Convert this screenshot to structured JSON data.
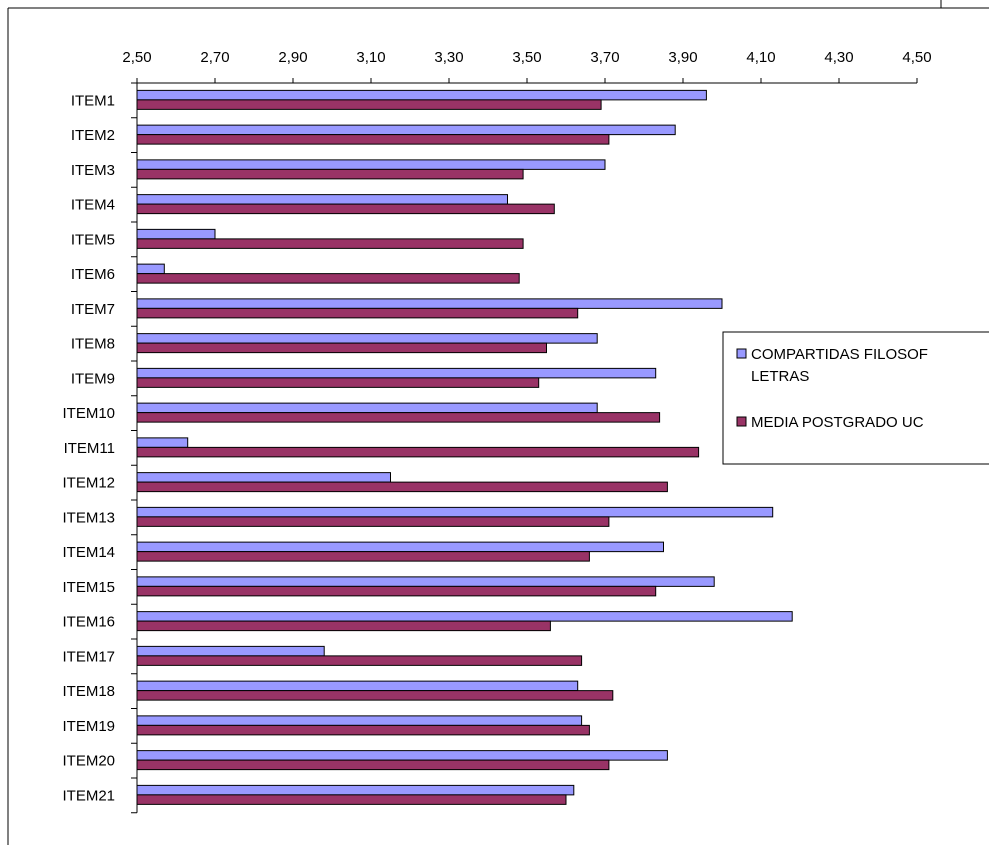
{
  "chart_data": {
    "type": "bar",
    "orientation": "horizontal",
    "categories": [
      "ITEM1",
      "ITEM2",
      "ITEM3",
      "ITEM4",
      "ITEM5",
      "ITEM6",
      "ITEM7",
      "ITEM8",
      "ITEM9",
      "ITEM10",
      "ITEM11",
      "ITEM12",
      "ITEM13",
      "ITEM14",
      "ITEM15",
      "ITEM16",
      "ITEM17",
      "ITEM18",
      "ITEM19",
      "ITEM20",
      "ITEM21"
    ],
    "series": [
      {
        "name": "COMPARTIDAS FILOSOFÍA Y LETRAS",
        "legend_lines": [
          "COMPARTIDAS FILOSOF",
          "LETRAS"
        ],
        "color": "#9999ff",
        "values": [
          3.96,
          3.88,
          3.7,
          3.45,
          2.7,
          2.57,
          4.0,
          3.68,
          3.83,
          3.68,
          2.63,
          3.15,
          4.13,
          3.85,
          3.98,
          4.18,
          2.98,
          3.63,
          3.64,
          3.86,
          3.62
        ]
      },
      {
        "name": "MEDIA POSTGRADO UC",
        "legend_lines": [
          "MEDIA POSTGRADO UC"
        ],
        "color": "#993366",
        "values": [
          3.69,
          3.71,
          3.49,
          3.57,
          3.49,
          3.48,
          3.63,
          3.55,
          3.53,
          3.84,
          3.94,
          3.86,
          3.71,
          3.66,
          3.83,
          3.56,
          3.64,
          3.72,
          3.66,
          3.71,
          3.6
        ]
      }
    ],
    "xlim": [
      2.5,
      4.5
    ],
    "xticks": [
      "2,50",
      "2,70",
      "2,90",
      "3,10",
      "3,30",
      "3,50",
      "3,70",
      "3,90",
      "4,10",
      "4,30",
      "4,50"
    ],
    "axis_position": "top",
    "grid": false,
    "legend_position": "right"
  }
}
